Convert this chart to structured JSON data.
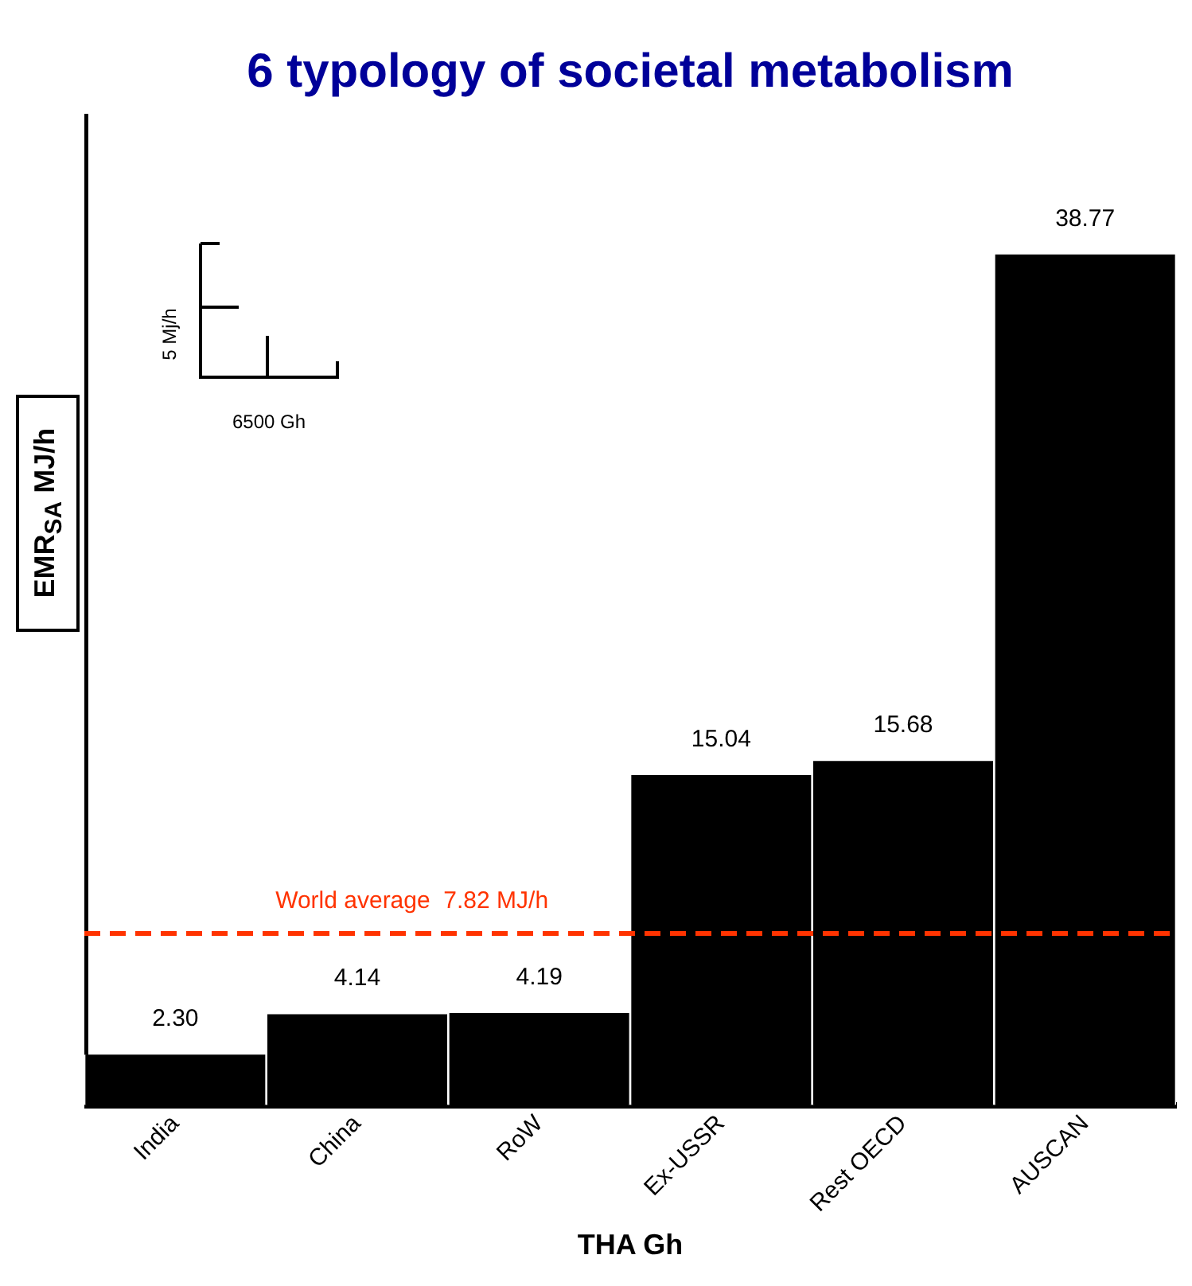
{
  "chart_data": {
    "type": "bar",
    "title": "6 typology of societal metabolism",
    "xlabel": "THA Gh",
    "ylabel": "EMR$_{SA}$ MJ/h",
    "categories": [
      "India",
      "China",
      "RoW",
      "Ex-USSR",
      "Rest OECD",
      "AUSCAN"
    ],
    "values": [
      2.3,
      4.14,
      4.19,
      15.04,
      15.68,
      38.77
    ],
    "value_labels": [
      "2.30",
      "4.14",
      "4.19",
      "15.04",
      "15.68",
      "38.77"
    ],
    "color": "#000000",
    "ref_lines": [
      {
        "axis": "y",
        "value": 7.82,
        "label": "World average  7.82 MJ/h",
        "color": "#ff3300",
        "line_style": "dashed"
      }
    ],
    "annotations": [
      "5 Mj/h",
      "6500 Gh"
    ],
    "grid": false,
    "legend": false,
    "tick_labels": "x"
  }
}
